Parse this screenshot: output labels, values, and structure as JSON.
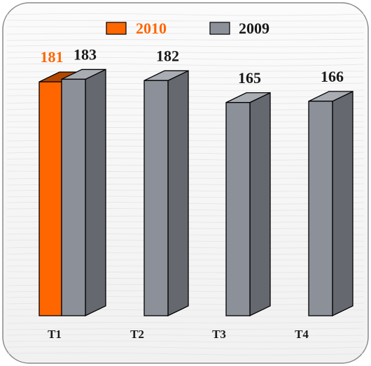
{
  "chart_data": {
    "type": "bar",
    "categories": [
      "T1",
      "T2",
      "T3",
      "T4"
    ],
    "series": [
      {
        "name": "2010",
        "color": "#ff6600",
        "values": [
          181,
          null,
          null,
          null
        ]
      },
      {
        "name": "2009",
        "color": "#8c9199",
        "values": [
          183,
          182,
          165,
          166
        ]
      }
    ],
    "title": "",
    "xlabel": "",
    "ylabel": "",
    "ylim": [
      0,
      200
    ],
    "grid": false,
    "legend": "top-center",
    "bar_style": "3d"
  }
}
